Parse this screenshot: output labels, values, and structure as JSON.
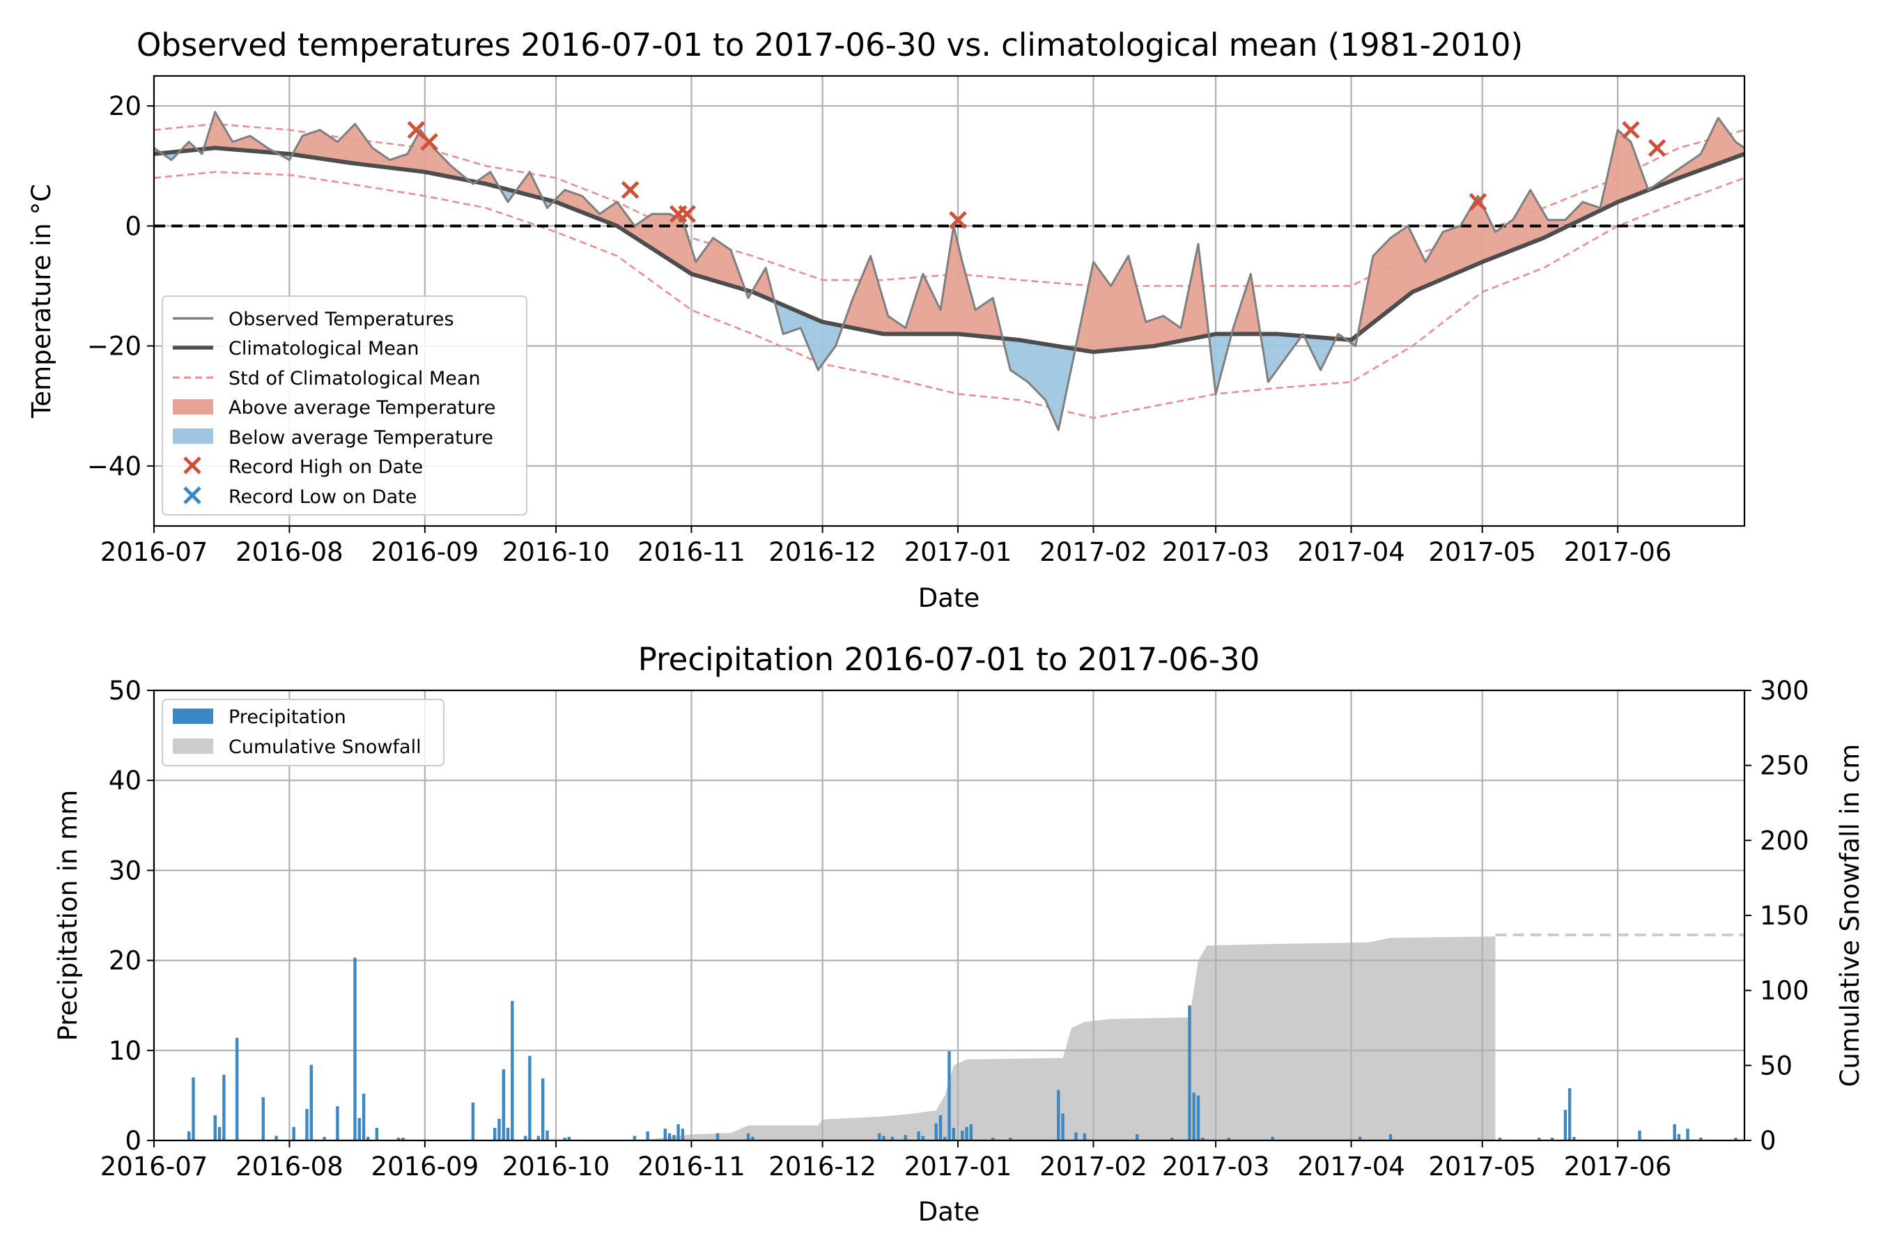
{
  "colors": {
    "above": "#e6a394",
    "above_dark": "#d9604a",
    "below": "#9ec6e2",
    "below_dark": "#4a8ec2",
    "observed": "#7f7f7f",
    "mean": "#4d4d4d",
    "std": "#f08c8c",
    "record_high": "#d0503a",
    "record_low": "#3a88c4",
    "precip": "#3a88c4",
    "snow": "#cccccc",
    "zero_line": "#000000"
  },
  "chart_data": [
    {
      "type": "line",
      "title": "Observed temperatures 2016-07-01 to 2017-06-30 vs. climatological mean (1981-2010)",
      "xlabel": "Date",
      "ylabel": "Temperature in °C",
      "x_range": [
        "2016-07-01",
        "2017-06-30"
      ],
      "ylim": [
        -50,
        25
      ],
      "yticks": [
        20,
        0,
        -20,
        -40
      ],
      "ytick_labels": [
        "20",
        "0",
        "−20",
        "−40"
      ],
      "xtick_dates": [
        "2016-07-01",
        "2016-08-01",
        "2016-09-01",
        "2016-10-01",
        "2016-11-01",
        "2016-12-01",
        "2017-01-01",
        "2017-02-01",
        "2017-03-01",
        "2017-04-01",
        "2017-05-01",
        "2017-06-01"
      ],
      "xtick_labels": [
        "2016-07",
        "2016-08",
        "2016-09",
        "2016-10",
        "2016-11",
        "2016-12",
        "2017-01",
        "2017-02",
        "2017-03",
        "2017-04",
        "2017-05",
        "2017-06"
      ],
      "grid": true,
      "legend_position": "lower-left",
      "legend": [
        "Observed Temperatures",
        "Climatological Mean",
        "Std of Climatological Mean",
        "Above average Temperature",
        "Below average Temperature",
        "Record High on Date",
        "Record Low on Date"
      ],
      "climatological_mean": {
        "dates": [
          "2016-07-01",
          "2016-07-15",
          "2016-08-01",
          "2016-08-15",
          "2016-09-01",
          "2016-09-15",
          "2016-10-01",
          "2016-10-15",
          "2016-11-01",
          "2016-11-15",
          "2016-12-01",
          "2016-12-15",
          "2017-01-01",
          "2017-01-15",
          "2017-02-01",
          "2017-02-15",
          "2017-03-01",
          "2017-03-15",
          "2017-04-01",
          "2017-04-15",
          "2017-05-01",
          "2017-05-15",
          "2017-06-01",
          "2017-06-15",
          "2017-06-30"
        ],
        "values": [
          12,
          13,
          12,
          10.5,
          9,
          7,
          4,
          0,
          -8,
          -11,
          -16,
          -18,
          -18,
          -19,
          -21,
          -20,
          -18,
          -18,
          -19,
          -11,
          -6,
          -2,
          4,
          8,
          12
        ]
      },
      "std_upper": {
        "dates": [
          "2016-07-01",
          "2016-07-15",
          "2016-08-01",
          "2016-08-15",
          "2016-09-01",
          "2016-09-15",
          "2016-10-01",
          "2016-10-15",
          "2016-11-01",
          "2016-11-15",
          "2016-12-01",
          "2016-12-15",
          "2017-01-01",
          "2017-01-15",
          "2017-02-01",
          "2017-02-15",
          "2017-03-01",
          "2017-03-15",
          "2017-04-01",
          "2017-04-15",
          "2017-05-01",
          "2017-05-15",
          "2017-06-01",
          "2017-06-15",
          "2017-06-30"
        ],
        "values": [
          16,
          17,
          16,
          14.5,
          13,
          10,
          8,
          4,
          -2,
          -5,
          -9,
          -9,
          -8,
          -9,
          -10,
          -10,
          -10,
          -10,
          -10,
          -5,
          -1,
          3,
          8,
          13,
          16
        ]
      },
      "std_lower": {
        "dates": [
          "2016-07-01",
          "2016-07-15",
          "2016-08-01",
          "2016-08-15",
          "2016-09-01",
          "2016-09-15",
          "2016-10-01",
          "2016-10-15",
          "2016-11-01",
          "2016-11-15",
          "2016-12-01",
          "2016-12-15",
          "2017-01-01",
          "2017-01-15",
          "2017-02-01",
          "2017-02-15",
          "2017-03-01",
          "2017-03-15",
          "2017-04-01",
          "2017-04-15",
          "2017-05-01",
          "2017-05-15",
          "2017-06-01",
          "2017-06-15",
          "2017-06-30"
        ],
        "values": [
          8,
          9,
          8.5,
          7,
          5,
          3,
          -1,
          -5,
          -14,
          -18,
          -23,
          -25,
          -28,
          -29,
          -32,
          -30,
          -28,
          -27,
          -26,
          -20,
          -11,
          -7,
          0,
          4,
          8
        ]
      },
      "observed": {
        "dates": [
          "2016-07-01",
          "2016-07-05",
          "2016-07-09",
          "2016-07-12",
          "2016-07-15",
          "2016-07-19",
          "2016-07-23",
          "2016-07-27",
          "2016-08-01",
          "2016-08-04",
          "2016-08-08",
          "2016-08-12",
          "2016-08-16",
          "2016-08-20",
          "2016-08-24",
          "2016-08-28",
          "2016-08-31",
          "2016-09-03",
          "2016-09-07",
          "2016-09-12",
          "2016-09-16",
          "2016-09-20",
          "2016-09-25",
          "2016-09-29",
          "2016-10-03",
          "2016-10-07",
          "2016-10-11",
          "2016-10-15",
          "2016-10-19",
          "2016-10-23",
          "2016-10-27",
          "2016-10-30",
          "2016-11-02",
          "2016-11-06",
          "2016-11-10",
          "2016-11-14",
          "2016-11-18",
          "2016-11-22",
          "2016-11-26",
          "2016-11-30",
          "2016-12-04",
          "2016-12-08",
          "2016-12-12",
          "2016-12-16",
          "2016-12-20",
          "2016-12-24",
          "2016-12-28",
          "2016-12-31",
          "2017-01-02",
          "2017-01-05",
          "2017-01-09",
          "2017-01-13",
          "2017-01-17",
          "2017-01-21",
          "2017-01-24",
          "2017-01-28",
          "2017-02-01",
          "2017-02-05",
          "2017-02-09",
          "2017-02-13",
          "2017-02-17",
          "2017-02-21",
          "2017-02-25",
          "2017-03-01",
          "2017-03-05",
          "2017-03-09",
          "2017-03-13",
          "2017-03-17",
          "2017-03-21",
          "2017-03-25",
          "2017-03-29",
          "2017-04-02",
          "2017-04-06",
          "2017-04-10",
          "2017-04-14",
          "2017-04-18",
          "2017-04-22",
          "2017-04-26",
          "2017-04-30",
          "2017-05-04",
          "2017-05-08",
          "2017-05-12",
          "2017-05-16",
          "2017-05-20",
          "2017-05-24",
          "2017-05-28",
          "2017-06-01",
          "2017-06-04",
          "2017-06-08",
          "2017-06-12",
          "2017-06-16",
          "2017-06-20",
          "2017-06-24",
          "2017-06-28",
          "2017-06-30"
        ],
        "values": [
          13,
          11,
          14,
          12,
          19,
          14,
          15,
          13,
          11,
          15,
          16,
          14,
          17,
          13,
          11,
          12,
          16,
          13,
          10,
          7,
          9,
          4,
          9,
          3,
          6,
          5,
          2,
          4,
          0,
          2,
          2,
          1,
          -6,
          -2,
          -4,
          -12,
          -7,
          -18,
          -17,
          -24,
          -20,
          -12,
          -5,
          -15,
          -17,
          -8,
          -14,
          0,
          -6,
          -14,
          -12,
          -24,
          -26,
          -29,
          -34,
          -20,
          -6,
          -10,
          -5,
          -16,
          -15,
          -17,
          -3,
          -28,
          -17,
          -8,
          -26,
          -22,
          -18,
          -24,
          -18,
          -20,
          -5,
          -2,
          0,
          -6,
          -1,
          0,
          5,
          -1,
          1,
          6,
          1,
          1,
          4,
          3,
          16,
          14,
          6,
          8,
          10,
          12,
          18,
          14,
          13
        ]
      },
      "record_high_markers": {
        "dates": [
          "2016-08-30",
          "2016-09-02",
          "2016-10-18",
          "2016-10-29",
          "2016-10-31",
          "2017-01-01",
          "2017-04-30",
          "2017-06-04",
          "2017-06-10"
        ],
        "values": [
          16,
          14,
          6,
          2,
          2,
          1,
          4,
          16,
          13
        ]
      }
    },
    {
      "type": "bar",
      "title": "Precipitation 2016-07-01 to 2017-06-30",
      "xlabel": "Date",
      "ylabel": "Precipitation in mm",
      "y2label": "Cumulative Snowfall in cm",
      "x_range": [
        "2016-07-01",
        "2017-06-30"
      ],
      "ylim": [
        0,
        50
      ],
      "y2lim": [
        0,
        300
      ],
      "yticks": [
        0,
        10,
        20,
        30,
        40,
        50
      ],
      "y2ticks": [
        0,
        50,
        100,
        150,
        200,
        250,
        300
      ],
      "xtick_dates": [
        "2016-07-01",
        "2016-08-01",
        "2016-09-01",
        "2016-10-01",
        "2016-11-01",
        "2016-12-01",
        "2017-01-01",
        "2017-02-01",
        "2017-03-01",
        "2017-04-01",
        "2017-05-01",
        "2017-06-01"
      ],
      "xtick_labels": [
        "2016-07",
        "2016-08",
        "2016-09",
        "2016-10",
        "2016-11",
        "2016-12",
        "2017-01",
        "2017-02",
        "2017-03",
        "2017-04",
        "2017-05",
        "2017-06"
      ],
      "grid": true,
      "legend_position": "top-left",
      "legend": [
        "Precipitation",
        "Cumulative Snowfall"
      ],
      "precipitation": {
        "dates": [
          "2016-07-09",
          "2016-07-10",
          "2016-07-15",
          "2016-07-16",
          "2016-07-17",
          "2016-07-20",
          "2016-07-26",
          "2016-07-29",
          "2016-08-02",
          "2016-08-05",
          "2016-08-06",
          "2016-08-09",
          "2016-08-12",
          "2016-08-16",
          "2016-08-17",
          "2016-08-18",
          "2016-08-19",
          "2016-08-21",
          "2016-08-26",
          "2016-08-27",
          "2016-09-12",
          "2016-09-17",
          "2016-09-18",
          "2016-09-19",
          "2016-09-20",
          "2016-09-21",
          "2016-09-24",
          "2016-09-25",
          "2016-09-27",
          "2016-09-28",
          "2016-09-29",
          "2016-10-03",
          "2016-10-04",
          "2016-10-19",
          "2016-10-22",
          "2016-10-26",
          "2016-10-27",
          "2016-10-28",
          "2016-10-29",
          "2016-10-30",
          "2016-11-07",
          "2016-11-14",
          "2016-11-15",
          "2016-12-14",
          "2016-12-15",
          "2016-12-17",
          "2016-12-20",
          "2016-12-23",
          "2016-12-24",
          "2016-12-27",
          "2016-12-28",
          "2016-12-29",
          "2016-12-30",
          "2016-12-31",
          "2017-01-02",
          "2017-01-03",
          "2017-01-04",
          "2017-01-09",
          "2017-01-13",
          "2017-01-24",
          "2017-01-25",
          "2017-01-28",
          "2017-01-30",
          "2017-02-11",
          "2017-02-19",
          "2017-02-23",
          "2017-02-24",
          "2017-02-25",
          "2017-02-26",
          "2017-03-04",
          "2017-03-14",
          "2017-04-03",
          "2017-04-10",
          "2017-05-05",
          "2017-05-14",
          "2017-05-17",
          "2017-05-20",
          "2017-05-21",
          "2017-05-22",
          "2017-06-06",
          "2017-06-14",
          "2017-06-15",
          "2017-06-17",
          "2017-06-20",
          "2017-06-28"
        ],
        "values": [
          1,
          7,
          2.8,
          1.5,
          7.3,
          11.4,
          4.8,
          0.5,
          1.5,
          3.5,
          8.4,
          0.4,
          3.8,
          20.3,
          2.5,
          5.2,
          0.4,
          1.4,
          0.3,
          0.3,
          4.2,
          1.4,
          2.4,
          7.9,
          1.4,
          15.5,
          0.5,
          9.4,
          0.5,
          6.9,
          1.1,
          0.3,
          0.4,
          0.5,
          1,
          1.3,
          0.8,
          0.6,
          1.8,
          1.3,
          0.8,
          0.8,
          0.4,
          0.8,
          0.5,
          0.4,
          0.6,
          1,
          0.5,
          1.9,
          2.8,
          0.4,
          9.9,
          1.4,
          1.1,
          1.5,
          1.8,
          0.3,
          0.3,
          5.6,
          3,
          0.9,
          0.8,
          0.7,
          0.3,
          15,
          5.3,
          5,
          0.3,
          0.3,
          0.4,
          0.4,
          0.7,
          0.3,
          0.3,
          0.3,
          3.4,
          5.8,
          0.4,
          1.1,
          1.8,
          0.7,
          1.3,
          0.3,
          0.3
        ]
      },
      "cumulative_snowfall": {
        "dates": [
          "2016-07-01",
          "2016-10-20",
          "2016-10-26",
          "2016-11-01",
          "2016-11-10",
          "2016-11-14",
          "2016-11-30",
          "2016-12-01",
          "2016-12-15",
          "2016-12-22",
          "2016-12-27",
          "2016-12-29",
          "2016-12-31",
          "2017-01-03",
          "2017-01-25",
          "2017-01-27",
          "2017-01-30",
          "2017-02-05",
          "2017-02-23",
          "2017-02-25",
          "2017-02-27",
          "2017-03-15",
          "2017-04-05",
          "2017-04-10",
          "2017-05-04",
          "2017-05-04"
        ],
        "values": [
          0,
          0,
          2,
          4,
          5,
          10,
          10,
          14,
          16,
          18,
          20,
          30,
          50,
          54,
          55,
          75,
          79,
          81,
          82,
          120,
          130,
          131,
          132,
          135,
          136,
          0
        ]
      },
      "snowfall_projection_cm": 137
    }
  ]
}
